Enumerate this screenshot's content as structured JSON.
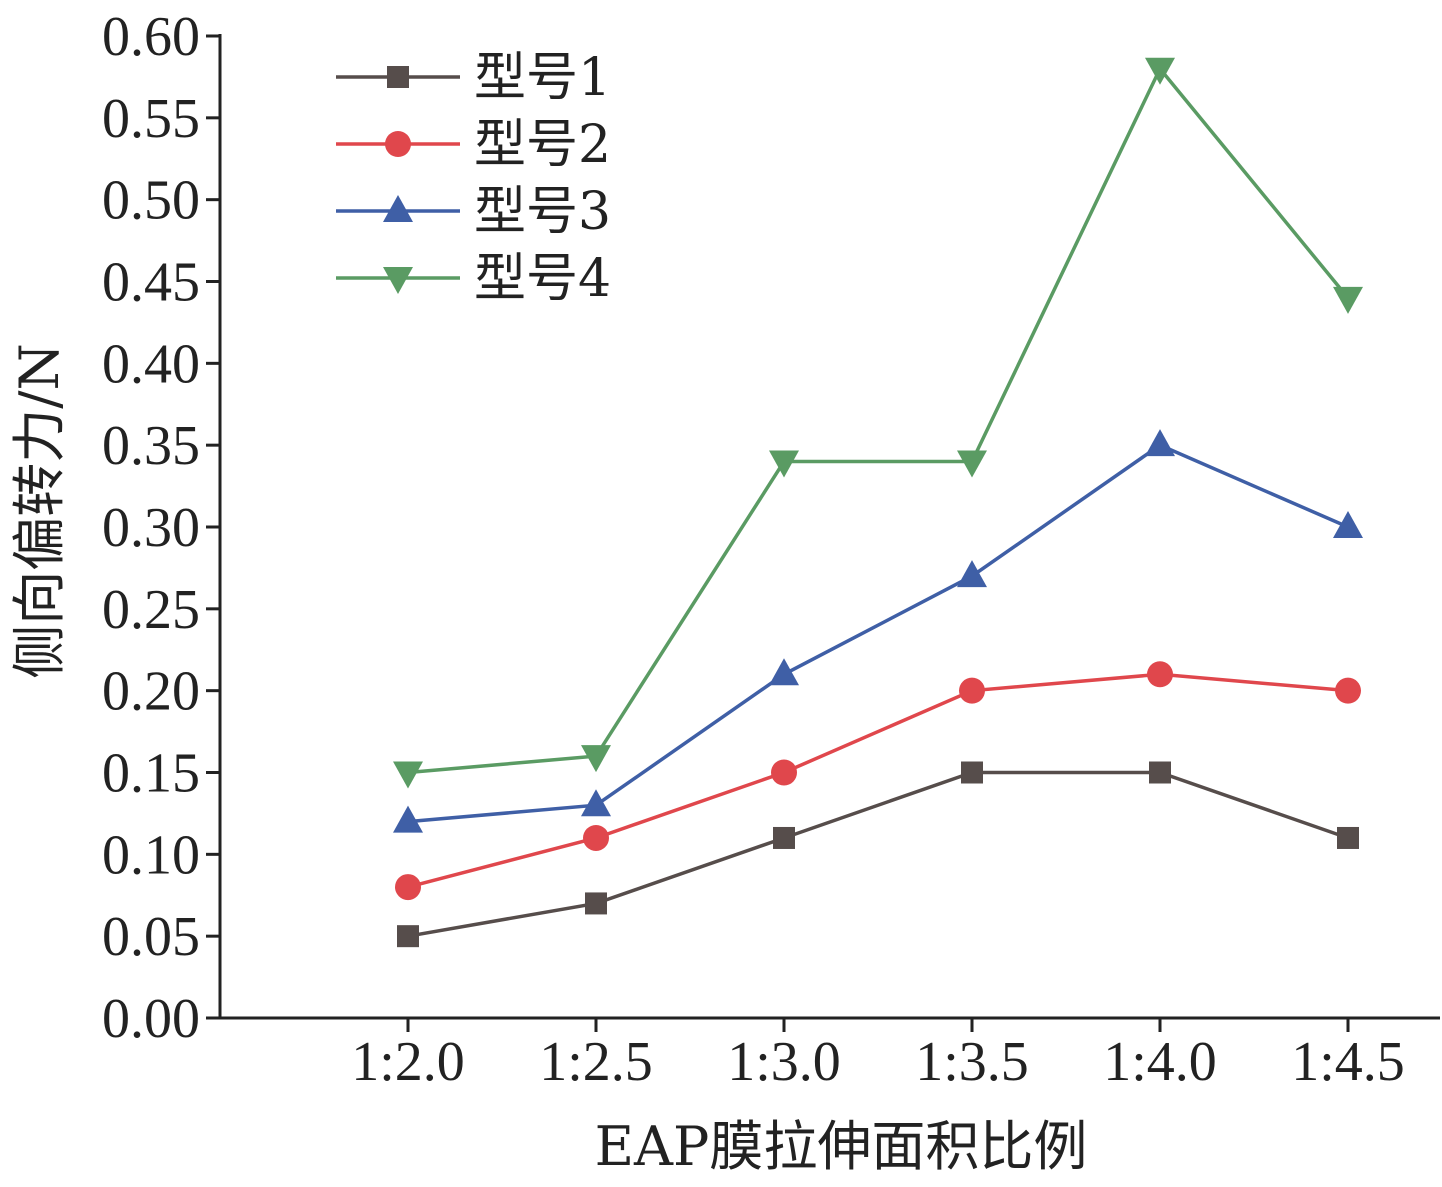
{
  "chart_data": {
    "type": "line",
    "title": "",
    "xlabel": "EAP膜拉伸面积比例",
    "ylabel": "侧向偏转力/N",
    "categories": [
      "1:2.0",
      "1:2.5",
      "1:3.0",
      "1:3.5",
      "1:4.0",
      "1:4.5"
    ],
    "ylim": [
      0,
      0.6
    ],
    "yticks": [
      "0.00",
      "0.05",
      "0.10",
      "0.15",
      "0.20",
      "0.25",
      "0.30",
      "0.35",
      "0.40",
      "0.45",
      "0.50",
      "0.55",
      "0.60"
    ],
    "legend_position": "top-left",
    "grid": false,
    "series": [
      {
        "name": "型号1",
        "color": "#564d4b",
        "marker": "square",
        "values": [
          0.05,
          0.07,
          0.11,
          0.15,
          0.15,
          0.11
        ]
      },
      {
        "name": "型号2",
        "color": "#e0474c",
        "marker": "circle",
        "values": [
          0.08,
          0.11,
          0.15,
          0.2,
          0.21,
          0.2
        ]
      },
      {
        "name": "型号3",
        "color": "#3f5fa6",
        "marker": "triangle-up",
        "values": [
          0.12,
          0.13,
          0.21,
          0.27,
          0.35,
          0.3
        ]
      },
      {
        "name": "型号4",
        "color": "#5a9b63",
        "marker": "triangle-down",
        "values": [
          0.15,
          0.16,
          0.34,
          0.34,
          0.58,
          0.44
        ]
      }
    ]
  }
}
